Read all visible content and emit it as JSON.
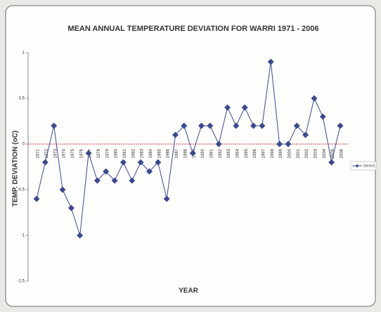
{
  "chart_data": {
    "type": "line",
    "title": "MEAN ANNUAL TEMPERATURE DEVIATION FOR WARRI 1971 - 2006",
    "x_label": "YEAR",
    "y_label": "TEMP. DEVIATION (oC)",
    "categories": [
      "1971",
      "1972",
      "1973",
      "1974",
      "1975",
      "1976",
      "1977",
      "1978",
      "1979",
      "1980",
      "1981",
      "1982",
      "1983",
      "1984",
      "1985",
      "1986",
      "1987",
      "1988",
      "1989",
      "1990",
      "1991",
      "1992",
      "1993",
      "1994",
      "1995",
      "1996",
      "1997",
      "1998",
      "1999",
      "2000",
      "2001",
      "2002",
      "2003",
      "2004",
      "2005",
      "2006"
    ],
    "series": [
      {
        "name": "Series1",
        "color": "#3c4a8c",
        "values": [
          -0.6,
          -0.2,
          0.2,
          -0.5,
          -0.7,
          -1.0,
          -0.1,
          -0.4,
          -0.3,
          -0.4,
          -0.2,
          -0.4,
          -0.2,
          -0.3,
          -0.2,
          -0.6,
          0.1,
          0.2,
          -0.1,
          0.2,
          0.2,
          0,
          0.4,
          0.2,
          0.4,
          0.2,
          0.2,
          0.9,
          0,
          0,
          0.2,
          0.1,
          0.5,
          0.3,
          -0.2,
          0.2
        ]
      }
    ],
    "ylim": [
      -1.5,
      1
    ],
    "yticks": [
      -1.5,
      -1,
      -0.5,
      0,
      0.5,
      1
    ],
    "reference_line_color": "#d04040",
    "legend": "right"
  }
}
